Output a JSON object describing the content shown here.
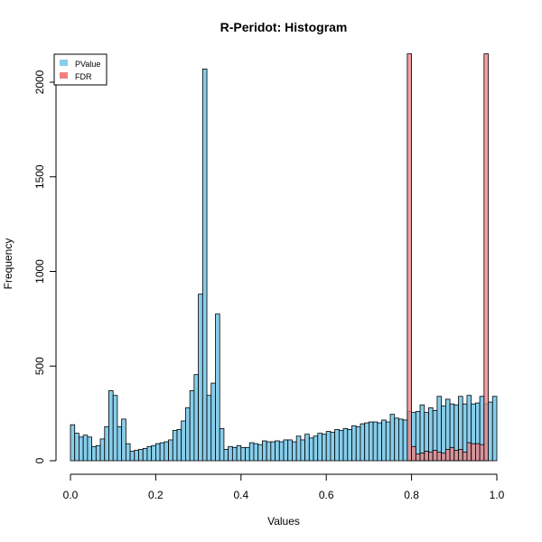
{
  "chart_data": {
    "type": "bar",
    "title": "R-Peridot: Histogram",
    "xlabel": "Values",
    "ylabel": "Frequency",
    "xlim": [
      0,
      1
    ],
    "ylim": [
      0,
      2150
    ],
    "x_ticks": [
      "0.0",
      "0.2",
      "0.4",
      "0.6",
      "0.8",
      "1.0"
    ],
    "y_ticks": [
      "0",
      "500",
      "1000",
      "1500",
      "2000"
    ],
    "bin_width": 0.01,
    "legend": {
      "position": "top-left"
    },
    "series": [
      {
        "name": "PValue",
        "color": "#87ceeb",
        "bins_start": 0,
        "values": [
          190,
          145,
          125,
          135,
          125,
          75,
          80,
          115,
          180,
          370,
          345,
          180,
          220,
          90,
          50,
          55,
          60,
          65,
          75,
          80,
          90,
          95,
          100,
          110,
          160,
          165,
          210,
          280,
          370,
          455,
          880,
          2070,
          345,
          410,
          775,
          170,
          60,
          75,
          70,
          80,
          70,
          70,
          95,
          90,
          85,
          105,
          100,
          100,
          105,
          100,
          110,
          110,
          100,
          130,
          110,
          140,
          120,
          130,
          145,
          140,
          155,
          150,
          165,
          160,
          170,
          165,
          185,
          180,
          195,
          200,
          205,
          205,
          200,
          215,
          205,
          245,
          225,
          220,
          215,
          260,
          255,
          260,
          295,
          255,
          280,
          265,
          340,
          290,
          325,
          300,
          295,
          340,
          300,
          345,
          300,
          305,
          340,
          300,
          310,
          340
        ]
      },
      {
        "name": "FDR",
        "color": "#f08080",
        "bins_start": 0.79,
        "values": [
          2150,
          75,
          35,
          40,
          50,
          45,
          55,
          45,
          40,
          60,
          70,
          55,
          60,
          45,
          95,
          90,
          90,
          85,
          2150,
          0,
          0
        ]
      }
    ]
  }
}
